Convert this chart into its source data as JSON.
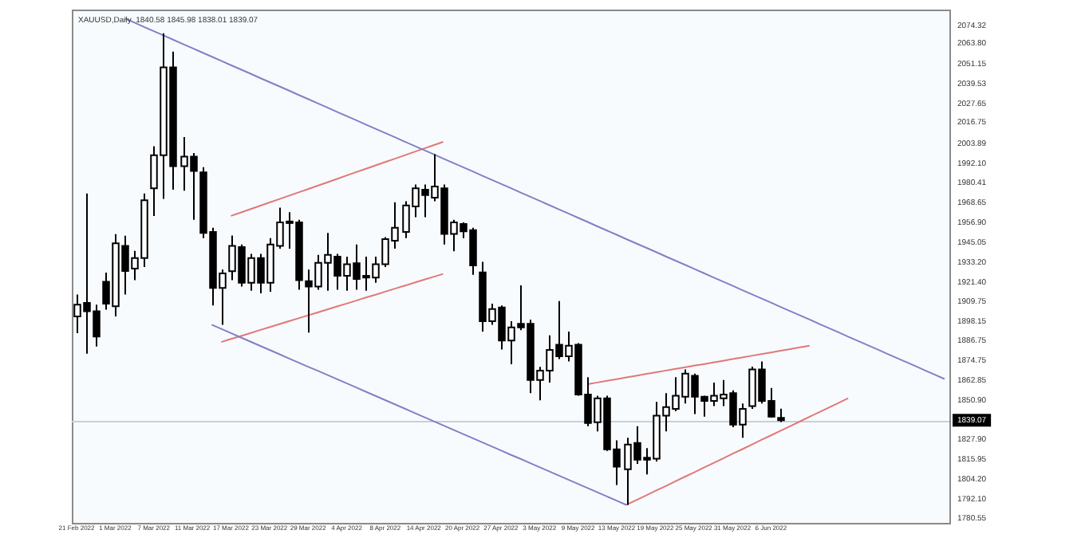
{
  "chart_data": {
    "type": "candlestick",
    "title": "XAUUSD,Daily  1840.58 1845.98 1838.01 1839.07",
    "colors": [
      "#ffffff",
      "#000000",
      "#000000",
      "#000000",
      "#ffffff",
      "#000000",
      "#ffffff",
      "#ffffff",
      "#ffffff",
      "#ffffff",
      "#000000",
      "#ffffff",
      "#000000",
      "#000000",
      "#000000",
      "#ffffff",
      "#ffffff",
      "#000000",
      "#ffffff",
      "#000000",
      "#ffffff",
      "#ffffff",
      "#ffffff",
      "#000000",
      "#000000",
      "#ffffff",
      "#ffffff",
      "#000000",
      "#ffffff",
      "#000000",
      "#000000",
      "#ffffff",
      "#ffffff",
      "#ffffff",
      "#ffffff",
      "#ffffff",
      "#000000",
      "#ffffff",
      "#000000",
      "#ffffff",
      "#000000",
      "#000000",
      "#000000",
      "#ffffff",
      "#000000",
      "#ffffff",
      "#000000",
      "#000000",
      "#ffffff",
      "#ffffff",
      "#000000",
      "#ffffff",
      "#000000",
      "#000000",
      "#ffffff",
      "#000000",
      "#000000",
      "#ffffff",
      "#000000",
      "#000000",
      "#ffffff",
      "#ffffff",
      "#ffffff",
      "#ffffff",
      "#000000",
      "#000000",
      "#ffffff",
      "#ffffff",
      "#000000",
      "#ffffff",
      "#ffffff",
      "#000000",
      "#000000",
      "#000000",
      null,
      null,
      null,
      null,
      null,
      null,
      null,
      null,
      null,
      null,
      null,
      null,
      null,
      null,
      null,
      null,
      null
    ],
    "categories": [
      "21 Feb 2022",
      null,
      null,
      null,
      "1 Mar 2022",
      null,
      null,
      null,
      "7 Mar 2022",
      null,
      null,
      null,
      "11 Mar 2022",
      null,
      null,
      null,
      "17 Mar 2022",
      null,
      null,
      null,
      "23 Mar 2022",
      null,
      null,
      null,
      "29 Mar 2022",
      null,
      null,
      null,
      "4 Apr 2022",
      null,
      null,
      null,
      "8 Apr 2022",
      null,
      null,
      null,
      "14 Apr 2022",
      null,
      null,
      null,
      "20 Apr 2022",
      null,
      null,
      null,
      "27 Apr 2022",
      null,
      null,
      null,
      "3 May 2022",
      null,
      null,
      null,
      "9 May 2022",
      null,
      null,
      null,
      "13 May 2022",
      null,
      null,
      null,
      "19 May 2022",
      null,
      null,
      null,
      "25 May 2022",
      null,
      null,
      null,
      "31 May 2022",
      null,
      null,
      null,
      "6 Jun 2022",
      null,
      null,
      null,
      null,
      null,
      null,
      null,
      null,
      null,
      null,
      null,
      null,
      null,
      null,
      null,
      null,
      null,
      null
    ],
    "ohlc": [
      [
        1901,
        1914,
        1891,
        1908
      ],
      [
        1909,
        1974.2,
        1878.8,
        1904
      ],
      [
        1904,
        1908,
        1883,
        1889
      ],
      [
        1921.6,
        1927,
        1905,
        1908.5
      ],
      [
        1907,
        1950,
        1901,
        1944.5
      ],
      [
        1943,
        1949,
        1914,
        1928
      ],
      [
        1929.4,
        1940,
        1922.6,
        1935.7
      ],
      [
        1935.7,
        1974.2,
        1930.4,
        1970.1
      ],
      [
        1977.3,
        2002.3,
        1960.7,
        1997
      ],
      [
        1997,
        2069.6,
        1971,
        2049.3
      ],
      [
        2049.3,
        2058.7,
        1976.4,
        1990.4
      ],
      [
        1990.4,
        2007.7,
        1975.8,
        1996.1
      ],
      [
        1996.1,
        1998.3,
        1958.5,
        1987.6
      ],
      [
        1986.7,
        1989.8,
        1947.6,
        1950.7
      ],
      [
        1951.3,
        1953.8,
        1907.5,
        1917.9
      ],
      [
        1917.9,
        1928.8,
        1896,
        1926.6
      ],
      [
        1927.9,
        1949.1,
        1922.6,
        1942.9
      ],
      [
        1942.3,
        1943.8,
        1918.8,
        1921
      ],
      [
        1921,
        1938.2,
        1916.3,
        1935.7
      ],
      [
        1935.7,
        1938.2,
        1914.7,
        1921
      ],
      [
        1921,
        1947.6,
        1915.7,
        1943.8
      ],
      [
        1942.9,
        1965.7,
        1941.3,
        1957
      ],
      [
        1957,
        1963,
        1941.3,
        1957.5
      ],
      [
        1957,
        1958.5,
        1916.9,
        1922.6
      ],
      [
        1922,
        1928.8,
        1891.3,
        1918.8
      ],
      [
        1918.8,
        1937.6,
        1916.9,
        1932.9
      ],
      [
        1932.9,
        1950.7,
        1916.3,
        1937.6
      ],
      [
        1936.6,
        1938.2,
        1916.9,
        1925.1
      ],
      [
        1925.1,
        1936.6,
        1916.3,
        1932
      ],
      [
        1932.6,
        1943.8,
        1916.9,
        1923.2
      ],
      [
        1925.1,
        1936.6,
        1916.3,
        1924.1
      ],
      [
        1924.1,
        1936.6,
        1921,
        1932
      ],
      [
        1932,
        1948.2,
        1930.4,
        1947
      ],
      [
        1946,
        1968.9,
        1941.3,
        1953.8
      ],
      [
        1951.3,
        1969.5,
        1947.6,
        1967
      ],
      [
        1966.4,
        1979.5,
        1960.1,
        1977.3
      ],
      [
        1976.4,
        1979.5,
        1960.1,
        1973.2
      ],
      [
        1971.7,
        1997.6,
        1969.5,
        1978.3
      ],
      [
        1977.3,
        1979.5,
        1943.8,
        1950.1
      ],
      [
        1950.1,
        1958.5,
        1939.8,
        1957
      ],
      [
        1956,
        1957,
        1947.6,
        1951.6
      ],
      [
        1952.3,
        1953.8,
        1925.7,
        1931.3
      ],
      [
        1927.2,
        1933.5,
        1891.9,
        1898.1
      ],
      [
        1898.1,
        1908.5,
        1896,
        1905.3
      ],
      [
        1906.3,
        1907.5,
        1881.3,
        1886.6
      ],
      [
        1886.6,
        1898.1,
        1872.5,
        1894.4
      ],
      [
        1896.6,
        1919.4,
        1892.8,
        1894.4
      ],
      [
        1896.6,
        1899,
        1855.3,
        1863.1
      ],
      [
        1863.1,
        1870.9,
        1851,
        1868.7
      ],
      [
        1868.7,
        1889.7,
        1861.6,
        1881
      ],
      [
        1884.1,
        1910.1,
        1875.6,
        1877.2
      ],
      [
        1877.2,
        1891.9,
        1874.1,
        1883.5
      ],
      [
        1884.1,
        1885,
        1853.7,
        1854.4
      ],
      [
        1854.4,
        1864.7,
        1835.6,
        1837.5
      ],
      [
        1837.9,
        1853.7,
        1832.5,
        1852.2
      ],
      [
        1852.2,
        1853.7,
        1820.9,
        1821.8
      ],
      [
        1821.8,
        1827.1,
        1800.5,
        1811.5
      ],
      [
        1809.9,
        1828.7,
        1788.7,
        1824.6
      ],
      [
        1825.6,
        1835.6,
        1813.1,
        1815.6
      ],
      [
        1816.8,
        1822.5,
        1806.8,
        1815.6
      ],
      [
        1816.2,
        1850,
        1814.6,
        1841.8
      ],
      [
        1841.8,
        1855.3,
        1832.5,
        1846.9
      ],
      [
        1845.9,
        1864.7,
        1844.4,
        1853.7
      ],
      [
        1853.1,
        1869.4,
        1849.1,
        1866.9
      ],
      [
        1865.6,
        1866.9,
        1842.8,
        1853.1
      ],
      [
        1853.1,
        1853.7,
        1841.2,
        1850.6
      ],
      [
        1850.6,
        1861.6,
        1847.5,
        1853.7
      ],
      [
        1852.2,
        1863.1,
        1847.5,
        1854.4
      ],
      [
        1855.3,
        1856.9,
        1835,
        1836.5
      ],
      [
        1836.5,
        1849.1,
        1828.7,
        1845.9
      ],
      [
        1847.5,
        1871,
        1845.9,
        1869.4
      ],
      [
        1869.4,
        1874.1,
        1849.1,
        1850.6
      ],
      [
        1850.6,
        1858.4,
        1840.6,
        1841.2
      ],
      [
        1840.58,
        1845.98,
        1838.01,
        1839.07
      ],
      null,
      null,
      null,
      null,
      null,
      null,
      null,
      null,
      null,
      null,
      null,
      null,
      null,
      null,
      null,
      null,
      null
    ],
    "ylim": [
      1778,
      2083.7
    ],
    "yticks": [
      {
        "value": 2074.32,
        "label": "2074.32"
      },
      {
        "value": 2063.8,
        "label": "2063.80"
      },
      {
        "value": 2051.15,
        "label": "2051.15"
      },
      {
        "value": 2039.53,
        "label": "2039.53"
      },
      {
        "value": 2027.65,
        "label": "2027.65"
      },
      {
        "value": 2016.75,
        "label": "2016.75"
      },
      {
        "value": 2003.89,
        "label": "2003.89"
      },
      {
        "value": 1992.1,
        "label": "1992.10"
      },
      {
        "value": 1980.41,
        "label": "1980.41"
      },
      {
        "value": 1968.65,
        "label": "1968.65"
      },
      {
        "value": 1956.9,
        "label": "1956.90"
      },
      {
        "value": 1945.05,
        "label": "1945.05"
      },
      {
        "value": 1933.2,
        "label": "1933.20"
      },
      {
        "value": 1921.4,
        "label": "1921.40"
      },
      {
        "value": 1909.75,
        "label": "1909.75"
      },
      {
        "value": 1898.15,
        "label": "1898.15"
      },
      {
        "value": 1886.75,
        "label": "1886.75"
      },
      {
        "value": 1874.75,
        "label": "1874.75"
      },
      {
        "value": 1862.85,
        "label": "1862.85"
      },
      {
        "value": 1850.9,
        "label": "1850.90"
      },
      {
        "value": 1827.9,
        "label": "1827.90"
      },
      {
        "value": 1815.95,
        "label": "1815.95"
      },
      {
        "value": 1804.2,
        "label": "1804.20"
      },
      {
        "value": 1792.1,
        "label": "1792.10"
      },
      {
        "value": 1780.55,
        "label": "1780.55"
      }
    ],
    "ref_lines": [
      {
        "axis": "y",
        "value": 1839.07,
        "label": "1839.07",
        "color": "#c8d0d8"
      }
    ],
    "series": [
      {
        "type": "line",
        "color": "#8080c8",
        "values": [
          null,
          null,
          null,
          null,
          null,
          2078.4,
          2075.9,
          2073.3,
          2070.8,
          2068.3,
          2065.8,
          2063.2,
          2060.7,
          2058.2,
          2055.7,
          2053.1,
          2050.6,
          2048.1,
          2045.6,
          2043.0,
          2040.5,
          2038.0,
          2035.5,
          2032.9,
          2030.4,
          2027.9,
          2025.4,
          2022.8,
          2020.3,
          2017.8,
          2015.2,
          2012.7,
          2010.2,
          2007.7,
          2005.1,
          2002.6,
          2000.1,
          1997.6,
          1995.0,
          1992.5,
          1990.0,
          1987.5,
          1984.9,
          1982.4,
          1979.9,
          1977.4,
          1974.8,
          1972.3,
          1969.8,
          1967.3,
          1964.7,
          1962.2,
          1959.7,
          1957.2,
          1954.6,
          1952.1,
          1949.6,
          1947.0,
          1944.5,
          1942.0,
          1939.5,
          1936.9,
          1934.4,
          1931.9,
          1929.4,
          1926.8,
          1924.3,
          1921.8,
          1919.3,
          1916.7,
          1914.2,
          1911.7,
          1909.2,
          1906.6,
          1904.1,
          1901.6,
          1899.1,
          1896.5,
          1894.0,
          1891.5,
          1888.9,
          1886.4,
          1883.9,
          1881.4,
          1878.8,
          1876.3,
          1873.8,
          1871.3,
          1868.7,
          1866.2,
          1863.7
        ]
      },
      {
        "type": "line",
        "color": "#8080c8",
        "values": [
          null,
          null,
          null,
          null,
          null,
          null,
          null,
          null,
          null,
          null,
          null,
          null,
          null,
          null,
          1896.0,
          1893.5,
          1891.0,
          1888.5,
          1886.0,
          1883.5,
          1881.0,
          1878.5,
          1876.0,
          1873.5,
          1871.0,
          1868.6,
          1866.1,
          1863.6,
          1861.1,
          1858.6,
          1856.1,
          1853.6,
          1851.1,
          1848.6,
          1846.1,
          1843.6,
          1841.1,
          1838.6,
          1836.1,
          1833.6,
          1831.1,
          1828.6,
          1826.1,
          1823.6,
          1821.1,
          1818.6,
          1816.2,
          1813.7,
          1811.2,
          1808.7,
          1806.2,
          1803.7,
          1801.2,
          1798.7,
          1796.2,
          1793.7,
          1791.2,
          1788.7,
          null,
          null,
          null,
          null,
          null,
          null,
          null,
          null,
          null,
          null,
          null,
          null,
          null,
          null,
          null,
          null,
          null,
          null,
          null,
          null,
          null,
          null,
          null,
          null,
          null,
          null,
          null,
          null,
          null,
          null,
          null,
          null,
          null
        ]
      },
      {
        "type": "line",
        "color": "#e07878",
        "values": [
          null,
          null,
          null,
          null,
          null,
          null,
          null,
          null,
          null,
          null,
          null,
          null,
          null,
          null,
          null,
          null,
          1960.8,
          1962.8,
          1964.8,
          1966.8,
          1968.8,
          1970.8,
          1972.8,
          1974.8,
          1976.8,
          1978.8,
          1980.8,
          1982.8,
          1984.9,
          1986.9,
          1988.9,
          1990.9,
          1992.9,
          1994.9,
          1996.9,
          1998.9,
          2000.9,
          2002.9,
          2004.9,
          null,
          null,
          null,
          null,
          null,
          null,
          null,
          null,
          null,
          null,
          null,
          null,
          null,
          null,
          null,
          null,
          null,
          null,
          null,
          null,
          null,
          null,
          null,
          null,
          null,
          null,
          null,
          null,
          null,
          null,
          null,
          null,
          null,
          null,
          null,
          null,
          null,
          null,
          null,
          null,
          null,
          null,
          null,
          null,
          null,
          null,
          null,
          null,
          null,
          null,
          null,
          null
        ]
      },
      {
        "type": "line",
        "color": "#e07878",
        "values": [
          null,
          null,
          null,
          null,
          null,
          null,
          null,
          null,
          null,
          null,
          null,
          null,
          null,
          null,
          null,
          1885.7,
          1887.5,
          1889.2,
          1891.0,
          1892.8,
          1894.5,
          1896.3,
          1898.1,
          1899.8,
          1901.6,
          1903.3,
          1905.1,
          1906.9,
          1908.6,
          1910.4,
          1912.2,
          1913.9,
          1915.7,
          1917.5,
          1919.2,
          1921.0,
          1922.8,
          1924.5,
          1926.3,
          null,
          null,
          null,
          null,
          null,
          null,
          null,
          null,
          null,
          null,
          null,
          null,
          null,
          null,
          null,
          null,
          null,
          null,
          null,
          null,
          null,
          null,
          null,
          null,
          null,
          null,
          null,
          null,
          null,
          null,
          null,
          null,
          null,
          null,
          null,
          null,
          null,
          null,
          null,
          null,
          null,
          null,
          null,
          null,
          null,
          null,
          null,
          null,
          null,
          null,
          null,
          null
        ]
      },
      {
        "type": "line",
        "color": "#e07878",
        "values": [
          null,
          null,
          null,
          null,
          null,
          null,
          null,
          null,
          null,
          null,
          null,
          null,
          null,
          null,
          null,
          null,
          null,
          null,
          null,
          null,
          null,
          null,
          null,
          null,
          null,
          null,
          null,
          null,
          null,
          null,
          null,
          null,
          null,
          null,
          null,
          null,
          null,
          null,
          null,
          null,
          null,
          null,
          null,
          null,
          null,
          null,
          null,
          null,
          null,
          null,
          null,
          null,
          null,
          1860.6,
          1861.6,
          1862.6,
          1863.6,
          1864.6,
          1865.6,
          1866.6,
          1867.6,
          1868.6,
          1869.6,
          1870.6,
          1871.6,
          1872.5,
          1873.5,
          1874.5,
          1875.5,
          1876.5,
          1877.5,
          1878.5,
          1879.5,
          1880.5,
          1881.5,
          1882.5,
          1883.5,
          null,
          null,
          null,
          null,
          null,
          null,
          null,
          null,
          null,
          null,
          null,
          null,
          null,
          null
        ]
      },
      {
        "type": "line",
        "color": "#e07878",
        "values": [
          null,
          null,
          null,
          null,
          null,
          null,
          null,
          null,
          null,
          null,
          null,
          null,
          null,
          null,
          null,
          null,
          null,
          null,
          null,
          null,
          null,
          null,
          null,
          null,
          null,
          null,
          null,
          null,
          null,
          null,
          null,
          null,
          null,
          null,
          null,
          null,
          null,
          null,
          null,
          null,
          null,
          null,
          null,
          null,
          null,
          null,
          null,
          null,
          null,
          null,
          null,
          null,
          null,
          null,
          null,
          null,
          null,
          1788.7,
          1791.5,
          1794.2,
          1797.0,
          1799.7,
          1802.5,
          1805.3,
          1808.0,
          1810.8,
          1813.5,
          1816.3,
          1819.1,
          1821.8,
          1824.6,
          1827.4,
          1830.1,
          1832.9,
          1835.6,
          1838.4,
          1841.2,
          1843.9,
          1846.7,
          1849.4,
          1852.2,
          null,
          null,
          null,
          null,
          null,
          null,
          null,
          null,
          null,
          null
        ]
      }
    ],
    "grid": false,
    "legend": false
  }
}
